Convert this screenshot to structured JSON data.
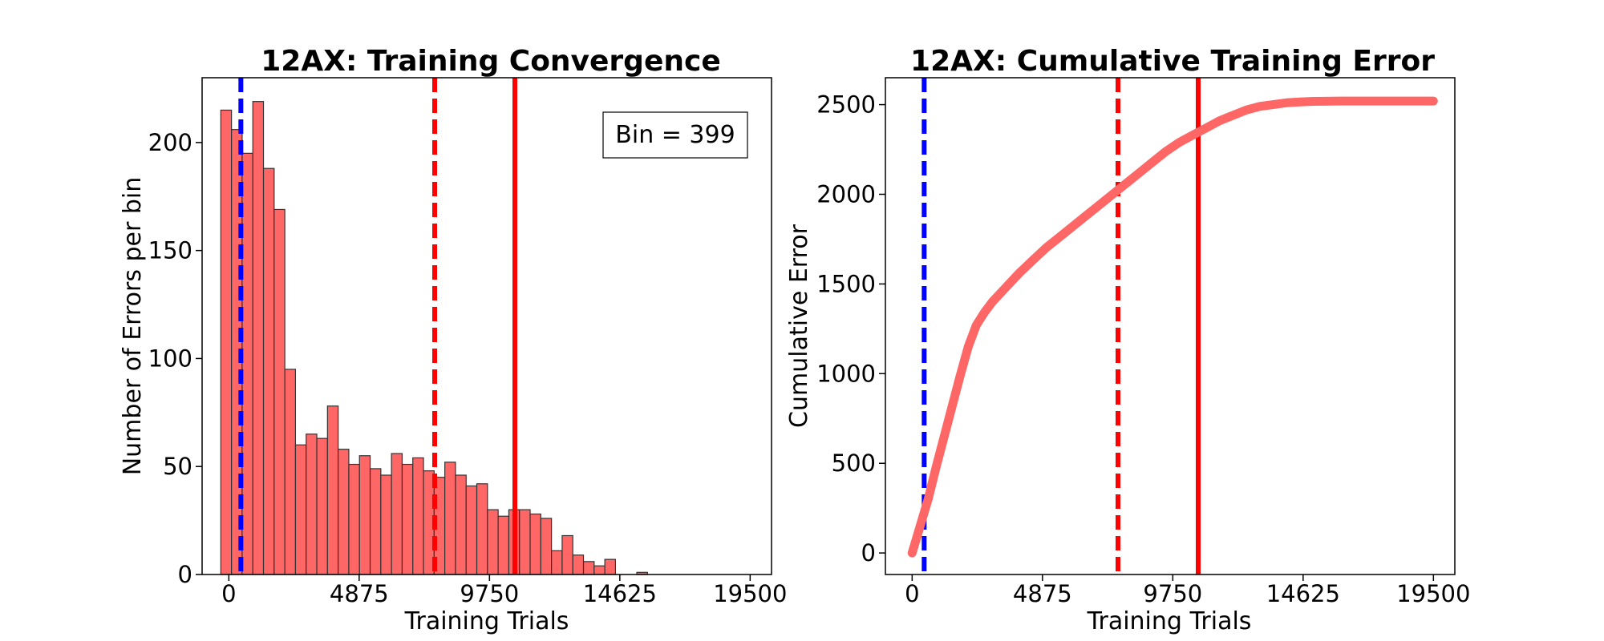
{
  "chart_data": [
    {
      "type": "bar",
      "title": "12AX: Training Convergence",
      "xlabel": "Training Trials",
      "ylabel": "Number of Errors per bin",
      "xlim": [
        -1000,
        20300
      ],
      "ylim": [
        0,
        230
      ],
      "xticks": [
        0,
        4875,
        9750,
        14625,
        19500
      ],
      "yticks": [
        0,
        50,
        100,
        150,
        200
      ],
      "annotation": "Bin = 399",
      "bin_width": 399,
      "bin_start": -300,
      "values": [
        215,
        206,
        195,
        219,
        188,
        169,
        95,
        60,
        65,
        63,
        78,
        58,
        51,
        55,
        49,
        46,
        56,
        51,
        54,
        48,
        45,
        52,
        46,
        41,
        42,
        30,
        27,
        30,
        30,
        28,
        26,
        11,
        18,
        9,
        6,
        4,
        7,
        0,
        0,
        1
      ],
      "bar_color": "#ff6666",
      "vlines": [
        {
          "x": 450,
          "style": "dashed",
          "color": "#0000ff"
        },
        {
          "x": 7700,
          "style": "dashed",
          "color": "#ff0000"
        },
        {
          "x": 10700,
          "style": "solid",
          "color": "#ff0000"
        }
      ],
      "grid": false
    },
    {
      "type": "line",
      "title": "12AX: Cumulative Training Error",
      "xlabel": "Training Trials",
      "ylabel": "Cumulative Error",
      "xlim": [
        -1000,
        20300
      ],
      "ylim": [
        -120,
        2650
      ],
      "xticks": [
        0,
        4875,
        9750,
        14625,
        19500
      ],
      "yticks": [
        0,
        500,
        1000,
        1500,
        2000,
        2500
      ],
      "series": [
        {
          "color": "#ff6666",
          "x": [
            0,
            300,
            600,
            900,
            1200,
            1500,
            1800,
            2100,
            2400,
            2700,
            3000,
            3500,
            4000,
            4500,
            5000,
            5500,
            6000,
            6500,
            7000,
            7500,
            8000,
            8500,
            9000,
            9500,
            10000,
            10500,
            11000,
            11500,
            12000,
            12500,
            13000,
            13500,
            14000,
            14500,
            15000,
            16000,
            17000,
            18000,
            19000,
            19500
          ],
          "y": [
            0,
            150,
            300,
            480,
            650,
            820,
            990,
            1150,
            1270,
            1340,
            1400,
            1480,
            1560,
            1630,
            1700,
            1760,
            1820,
            1880,
            1940,
            2000,
            2060,
            2120,
            2180,
            2240,
            2290,
            2330,
            2370,
            2410,
            2440,
            2470,
            2490,
            2500,
            2510,
            2515,
            2518,
            2520,
            2520,
            2520,
            2520,
            2520
          ]
        }
      ],
      "vlines": [
        {
          "x": 450,
          "style": "dashed",
          "color": "#0000ff"
        },
        {
          "x": 7700,
          "style": "dashed",
          "color": "#ff0000"
        },
        {
          "x": 10700,
          "style": "solid",
          "color": "#ff0000"
        }
      ],
      "grid": false
    }
  ]
}
